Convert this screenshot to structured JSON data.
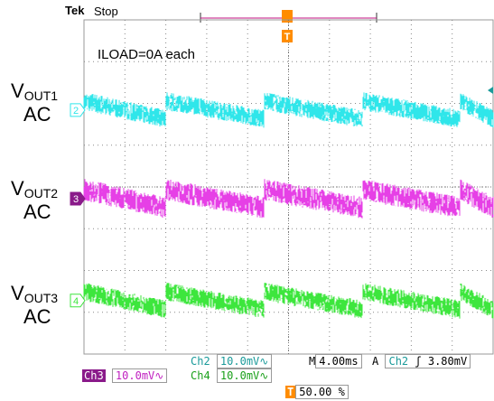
{
  "header": {
    "brand": "Tek",
    "run_state": "Stop"
  },
  "annotation": "ILOAD=0A each",
  "channels": [
    {
      "id": "2",
      "label_main": "V",
      "label_sub": "OUT1",
      "label_line2": "AC",
      "color": "#2fe6ea",
      "level_fraction": 0.27,
      "step_amplitude": 0.045,
      "noise": 0.055
    },
    {
      "id": "3",
      "label_main": "V",
      "label_sub": "OUT2",
      "label_line2": "AC",
      "color": "#e640e6",
      "level_fraction": 0.535,
      "step_amplitude": 0.045,
      "noise": 0.065
    },
    {
      "id": "4",
      "label_main": "V",
      "label_sub": "OUT3",
      "label_line2": "AC",
      "color": "#3de63d",
      "level_fraction": 0.84,
      "step_amplitude": 0.045,
      "noise": 0.055
    }
  ],
  "grid": {
    "divisions_x": 10,
    "divisions_y": 8,
    "trigger_position_fraction": 0.5
  },
  "readouts": {
    "ch2": {
      "label": "Ch2",
      "value": "10.0mV",
      "coupling": "∿"
    },
    "ch3": {
      "label": "Ch3",
      "value": "10.0mV",
      "coupling": "∿"
    },
    "ch4": {
      "label": "Ch4",
      "value": "10.0mV",
      "coupling": "∿"
    },
    "timebase": {
      "label": "M",
      "value": "4.00ms"
    },
    "trigger": {
      "label": "A",
      "source": "Ch2",
      "slope": "ʃ",
      "level": "3.80mV"
    },
    "trigger_pos": {
      "value": "50.00 %"
    }
  },
  "markers": {
    "trigger_t": "T"
  },
  "colors": {
    "ch2": "#2fe6ea",
    "ch3": "#e640e6",
    "ch4": "#3de63d",
    "ch3_tag": "#8a1a8a",
    "trigger": "#ff8c00"
  }
}
